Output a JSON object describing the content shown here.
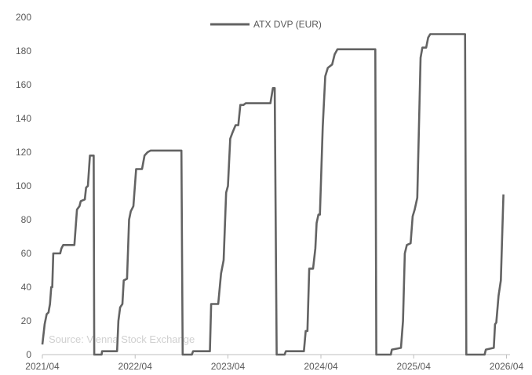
{
  "chart_data": {
    "type": "line",
    "title": "",
    "xlabel": "",
    "ylabel": "",
    "ylim": [
      0,
      200
    ],
    "yticks": [
      0,
      20,
      40,
      60,
      80,
      100,
      120,
      140,
      160,
      180,
      200
    ],
    "xlim": [
      "2021-04-01",
      "2026-04-15"
    ],
    "xticks": [
      "2021/04",
      "2022/04",
      "2023/04",
      "2024/04",
      "2025/04",
      "2026/04"
    ],
    "legend_position": "top-center",
    "grid": false,
    "source_note": "Source: Vienna Stock Exchange",
    "series": [
      {
        "name": "ATX DVP (EUR)",
        "color": "#636363",
        "points": [
          [
            "2021-04-01",
            6
          ],
          [
            "2021-04-10",
            18
          ],
          [
            "2021-04-18",
            24
          ],
          [
            "2021-04-25",
            25
          ],
          [
            "2021-05-01",
            30
          ],
          [
            "2021-05-06",
            40
          ],
          [
            "2021-05-10",
            40
          ],
          [
            "2021-05-14",
            60
          ],
          [
            "2021-06-10",
            60
          ],
          [
            "2021-06-15",
            63
          ],
          [
            "2021-06-22",
            65
          ],
          [
            "2021-08-05",
            65
          ],
          [
            "2021-08-15",
            86
          ],
          [
            "2021-08-25",
            88
          ],
          [
            "2021-08-30",
            91
          ],
          [
            "2021-09-15",
            92
          ],
          [
            "2021-09-20",
            99
          ],
          [
            "2021-09-27",
            100
          ],
          [
            "2021-10-05",
            118
          ],
          [
            "2021-10-20",
            118
          ],
          [
            "2021-10-22",
            0
          ],
          [
            "2021-11-20",
            0
          ],
          [
            "2021-11-22",
            2
          ],
          [
            "2022-01-20",
            2
          ],
          [
            "2022-01-25",
            20
          ],
          [
            "2022-02-01",
            28
          ],
          [
            "2022-02-10",
            30
          ],
          [
            "2022-02-15",
            44
          ],
          [
            "2022-02-28",
            45
          ],
          [
            "2022-03-08",
            80
          ],
          [
            "2022-03-15",
            85
          ],
          [
            "2022-03-25",
            88
          ],
          [
            "2022-04-05",
            110
          ],
          [
            "2022-04-28",
            110
          ],
          [
            "2022-05-08",
            118
          ],
          [
            "2022-05-20",
            120
          ],
          [
            "2022-06-01",
            121
          ],
          [
            "2022-09-30",
            121
          ],
          [
            "2022-10-05",
            0
          ],
          [
            "2022-11-10",
            0
          ],
          [
            "2022-11-15",
            2
          ],
          [
            "2023-01-20",
            2
          ],
          [
            "2023-01-25",
            30
          ],
          [
            "2023-02-22",
            30
          ],
          [
            "2023-03-05",
            48
          ],
          [
            "2023-03-15",
            56
          ],
          [
            "2023-03-25",
            96
          ],
          [
            "2023-04-01",
            100
          ],
          [
            "2023-04-10",
            128
          ],
          [
            "2023-04-20",
            132
          ],
          [
            "2023-05-01",
            136
          ],
          [
            "2023-05-12",
            136
          ],
          [
            "2023-05-20",
            148
          ],
          [
            "2023-06-01",
            148
          ],
          [
            "2023-06-10",
            149
          ],
          [
            "2023-09-15",
            149
          ],
          [
            "2023-09-25",
            158
          ],
          [
            "2023-10-02",
            158
          ],
          [
            "2023-10-10",
            0
          ],
          [
            "2023-11-10",
            0
          ],
          [
            "2023-11-15",
            2
          ],
          [
            "2024-01-25",
            2
          ],
          [
            "2024-02-01",
            14
          ],
          [
            "2024-02-08",
            14
          ],
          [
            "2024-02-15",
            51
          ],
          [
            "2024-03-01",
            51
          ],
          [
            "2024-03-10",
            63
          ],
          [
            "2024-03-15",
            78
          ],
          [
            "2024-03-22",
            83
          ],
          [
            "2024-03-28",
            83
          ],
          [
            "2024-04-08",
            135
          ],
          [
            "2024-04-18",
            165
          ],
          [
            "2024-04-28",
            170
          ],
          [
            "2024-05-15",
            172
          ],
          [
            "2024-05-25",
            178
          ],
          [
            "2024-06-05",
            181
          ],
          [
            "2024-11-01",
            181
          ],
          [
            "2024-11-05",
            0
          ],
          [
            "2025-01-01",
            0
          ],
          [
            "2025-01-05",
            3
          ],
          [
            "2025-02-10",
            4
          ],
          [
            "2025-02-18",
            20
          ],
          [
            "2025-02-25",
            60
          ],
          [
            "2025-03-05",
            65
          ],
          [
            "2025-03-20",
            66
          ],
          [
            "2025-03-28",
            82
          ],
          [
            "2025-04-05",
            86
          ],
          [
            "2025-04-15",
            93
          ],
          [
            "2025-04-28",
            176
          ],
          [
            "2025-05-05",
            182
          ],
          [
            "2025-05-20",
            182
          ],
          [
            "2025-05-28",
            188
          ],
          [
            "2025-06-05",
            190
          ],
          [
            "2025-10-20",
            190
          ],
          [
            "2025-10-25",
            0
          ],
          [
            "2026-01-05",
            0
          ],
          [
            "2026-01-10",
            3
          ],
          [
            "2026-02-10",
            4
          ],
          [
            "2026-02-15",
            18
          ],
          [
            "2026-02-20",
            19
          ],
          [
            "2026-03-01",
            35
          ],
          [
            "2026-03-10",
            44
          ],
          [
            "2026-03-20",
            95
          ]
        ]
      }
    ]
  }
}
